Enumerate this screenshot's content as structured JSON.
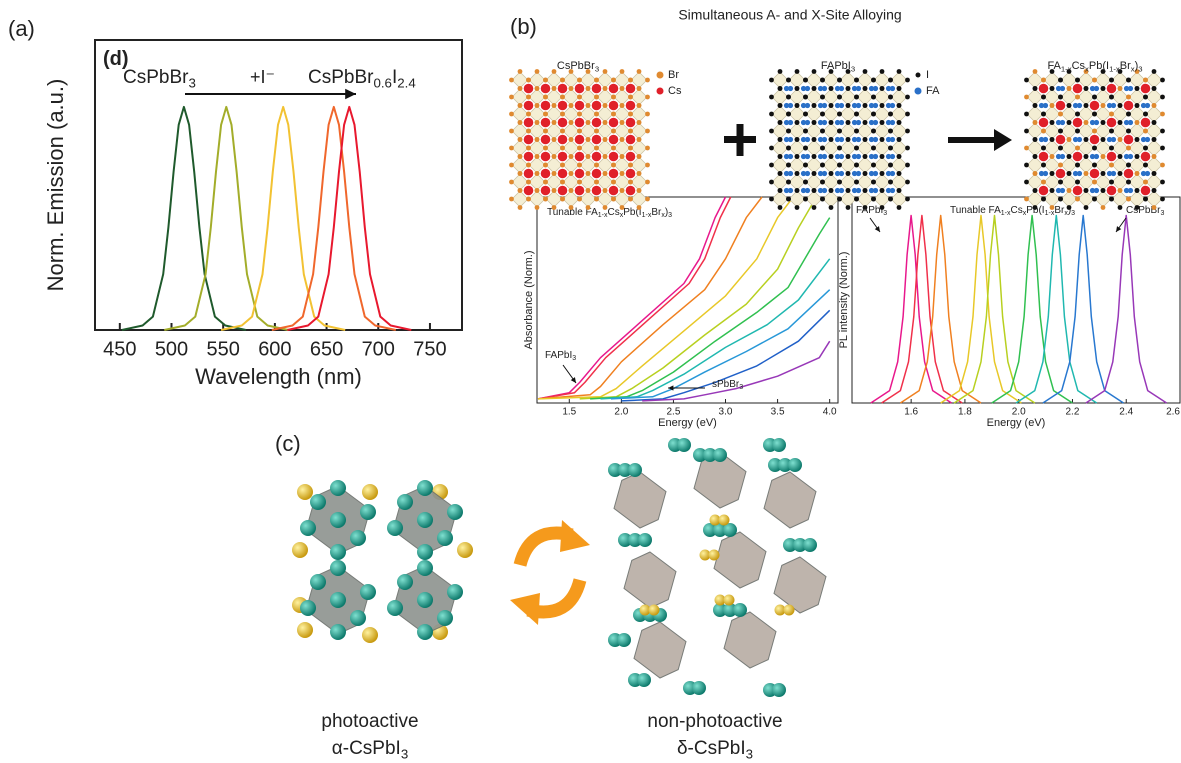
{
  "figure": {
    "panel_labels": [
      "(a)",
      "(b)",
      "(c)"
    ],
    "b_title": "Simultaneous A- and X-Site Alloying",
    "lattices": [
      {
        "label": [
          "CsPbBr",
          "3"
        ],
        "legend": [
          "Br",
          "Cs"
        ]
      },
      {
        "label": [
          "FAPbI",
          "3"
        ],
        "legend": [
          "I",
          "FA"
        ]
      },
      {
        "label": [
          "FA",
          "1-x",
          "Cs",
          "x",
          "Pb(I",
          "1-x",
          "Br",
          "x",
          ")",
          "3"
        ]
      }
    ],
    "c_captions": [
      {
        "line1": "photoactive",
        "line2": [
          "α-CsPbI",
          "3"
        ]
      },
      {
        "line1": "non-photoactive",
        "line2": [
          "δ-CsPbI",
          "3"
        ]
      }
    ]
  },
  "chart_data": [
    {
      "type": "line",
      "x_label": "Wavelength (nm)",
      "y_label": "Norm. Emission (a.u.)",
      "xlim": [
        426,
        781
      ],
      "ylim": [
        0,
        1.3
      ],
      "xticks": [
        450,
        500,
        550,
        600,
        650,
        700,
        750
      ],
      "annotations": [
        [
          "(d)"
        ],
        [
          "CsPbBr",
          "3"
        ],
        [
          "+I⁻"
        ],
        [
          "CsPbBr",
          "0.6",
          "I",
          "2.4"
        ]
      ],
      "series": [
        {
          "color": "#1f5a2c",
          "x": [
            452,
            472,
            482,
            492,
            497,
            502,
            507,
            512,
            517,
            522,
            527,
            532,
            542,
            552,
            572
          ],
          "values": [
            0,
            0.02,
            0.06,
            0.25,
            0.46,
            0.71,
            0.92,
            1,
            0.92,
            0.71,
            0.46,
            0.25,
            0.06,
            0.02,
            0
          ]
        },
        {
          "color": "#a3ad2a",
          "x": [
            493,
            513,
            523,
            533,
            538,
            543,
            548,
            553,
            558,
            563,
            568,
            573,
            583,
            593,
            613
          ],
          "values": [
            0,
            0.02,
            0.06,
            0.25,
            0.46,
            0.71,
            0.92,
            1,
            0.92,
            0.71,
            0.46,
            0.25,
            0.06,
            0.02,
            0
          ]
        },
        {
          "color": "#f2c232",
          "x": [
            548,
            568,
            578,
            588,
            593,
            598,
            603,
            608,
            613,
            618,
            623,
            628,
            638,
            648,
            668
          ],
          "values": [
            0,
            0.02,
            0.06,
            0.25,
            0.46,
            0.71,
            0.92,
            1,
            0.92,
            0.71,
            0.46,
            0.25,
            0.06,
            0.02,
            0
          ]
        },
        {
          "color": "#f0672c",
          "x": [
            597,
            617,
            627,
            637,
            642,
            647,
            652,
            657,
            662,
            667,
            672,
            677,
            687,
            697,
            717
          ],
          "values": [
            0,
            0.02,
            0.06,
            0.25,
            0.46,
            0.71,
            0.92,
            1,
            0.92,
            0.71,
            0.46,
            0.25,
            0.06,
            0.02,
            0
          ]
        },
        {
          "color": "#e8182e",
          "x": [
            612,
            632,
            642,
            652,
            657,
            662,
            667,
            672,
            677,
            682,
            687,
            692,
            702,
            712,
            732
          ],
          "values": [
            0,
            0.02,
            0.06,
            0.25,
            0.46,
            0.71,
            0.92,
            1,
            0.92,
            0.71,
            0.46,
            0.25,
            0.06,
            0.02,
            0
          ]
        }
      ]
    },
    {
      "type": "line",
      "x_label": "Energy (eV)",
      "y_label": "Absorbance (Norm.)",
      "xlim": [
        1.19,
        4.08
      ],
      "ylim": [
        0,
        1
      ],
      "xticks": [
        1.5,
        {
          "value": 2,
          "label": "2.0"
        },
        2.5,
        {
          "value": 3,
          "label": "3.0"
        },
        3.5,
        {
          "value": 4,
          "label": "4.0"
        }
      ],
      "annotations": [
        [
          "Tunable FA",
          "1-x",
          "Cs",
          "x",
          "Pb(I",
          "1-x",
          "Br",
          "x",
          ")",
          "3"
        ],
        [
          "FAPbI",
          "3"
        ],
        [
          "sPbBr",
          "3"
        ]
      ],
      "series": [
        {
          "color": "#e8188c",
          "x": [
            1.2,
            1.5,
            1.6,
            1.8,
            2.2,
            2.6,
            2.75,
            2.9,
            3.0
          ],
          "values": [
            0.02,
            0.05,
            0.1,
            0.22,
            0.4,
            0.58,
            0.7,
            0.9,
            1.0
          ]
        },
        {
          "color": "#f0304a",
          "x": [
            1.2,
            1.55,
            1.65,
            1.85,
            2.25,
            2.65,
            2.8,
            2.95,
            3.05
          ],
          "values": [
            0.02,
            0.05,
            0.1,
            0.22,
            0.4,
            0.58,
            0.7,
            0.9,
            1.0
          ]
        },
        {
          "color": "#f08020",
          "x": [
            1.2,
            1.7,
            1.8,
            2.0,
            2.4,
            2.8,
            3.0,
            3.2,
            3.35
          ],
          "values": [
            0.02,
            0.04,
            0.08,
            0.2,
            0.38,
            0.55,
            0.7,
            0.9,
            1.0
          ]
        },
        {
          "color": "#e8c828",
          "x": [
            1.2,
            1.8,
            1.95,
            2.2,
            2.6,
            3.0,
            3.3,
            3.5,
            3.65
          ],
          "values": [
            0.02,
            0.03,
            0.07,
            0.18,
            0.35,
            0.52,
            0.7,
            0.9,
            1.0
          ]
        },
        {
          "color": "#b8d020",
          "x": [
            1.6,
            1.95,
            2.1,
            2.4,
            2.8,
            3.2,
            3.5,
            3.7,
            3.85
          ],
          "values": [
            0.02,
            0.03,
            0.07,
            0.17,
            0.33,
            0.48,
            0.65,
            0.85,
            0.98
          ]
        },
        {
          "color": "#30c050",
          "x": [
            1.7,
            2.05,
            2.2,
            2.5,
            2.9,
            3.3,
            3.6,
            3.9,
            4.0
          ],
          "values": [
            0.02,
            0.03,
            0.06,
            0.15,
            0.3,
            0.44,
            0.56,
            0.82,
            0.9
          ]
        },
        {
          "color": "#20b8b0",
          "x": [
            1.8,
            2.15,
            2.3,
            2.6,
            3.0,
            3.4,
            3.7,
            4.0
          ],
          "values": [
            0.02,
            0.03,
            0.06,
            0.14,
            0.27,
            0.38,
            0.5,
            0.7
          ]
        },
        {
          "color": "#2898d8",
          "x": [
            1.9,
            2.3,
            2.5,
            2.8,
            3.2,
            3.6,
            4.0
          ],
          "values": [
            0.02,
            0.03,
            0.07,
            0.15,
            0.25,
            0.36,
            0.55
          ]
        },
        {
          "color": "#2060c8",
          "x": [
            2.0,
            2.4,
            2.6,
            2.9,
            3.3,
            3.7,
            4.0
          ],
          "values": [
            0.01,
            0.02,
            0.05,
            0.1,
            0.18,
            0.3,
            0.45
          ]
        },
        {
          "color": "#9838b8",
          "x": [
            2.2,
            2.6,
            2.8,
            3.1,
            3.5,
            3.9,
            4.0
          ],
          "values": [
            0.01,
            0.02,
            0.04,
            0.07,
            0.13,
            0.22,
            0.3
          ]
        }
      ]
    },
    {
      "type": "line",
      "x_label": "Energy (eV)",
      "y_label": "PL intensity (Norm.)",
      "xlim": [
        1.38,
        2.6
      ],
      "ylim": [
        0,
        1
      ],
      "xticks": [
        1.6,
        1.8,
        {
          "value": 2,
          "label": "2.0"
        },
        2.2,
        2.4,
        2.6
      ],
      "annotations": [
        [
          "FAPbI",
          "3"
        ],
        [
          "Tunable FA",
          "1-x",
          "Cs",
          "x",
          "Pb(I",
          "1-x",
          "Br",
          "x",
          ")",
          "3"
        ],
        [
          "CsPbBr",
          "3"
        ]
      ],
      "series": [
        {
          "color": "#e8188c",
          "x": [
            1.45,
            1.52,
            1.55,
            1.57,
            1.585,
            1.6,
            1.615,
            1.63,
            1.65,
            1.68,
            1.75
          ],
          "values": [
            0,
            0.06,
            0.2,
            0.42,
            0.72,
            0.91,
            0.72,
            0.42,
            0.2,
            0.06,
            0
          ]
        },
        {
          "color": "#f0304a",
          "x": [
            1.49,
            1.56,
            1.59,
            1.61,
            1.625,
            1.64,
            1.655,
            1.67,
            1.69,
            1.72,
            1.79
          ],
          "values": [
            0,
            0.06,
            0.2,
            0.42,
            0.72,
            0.91,
            0.72,
            0.42,
            0.2,
            0.06,
            0
          ]
        },
        {
          "color": "#f08020",
          "x": [
            1.56,
            1.63,
            1.66,
            1.68,
            1.695,
            1.71,
            1.725,
            1.74,
            1.76,
            1.79,
            1.86
          ],
          "values": [
            0,
            0.06,
            0.2,
            0.42,
            0.72,
            0.91,
            0.72,
            0.42,
            0.2,
            0.06,
            0
          ]
        },
        {
          "color": "#e8c828",
          "x": [
            1.71,
            1.78,
            1.81,
            1.83,
            1.845,
            1.86,
            1.875,
            1.89,
            1.91,
            1.94,
            2.01
          ],
          "values": [
            0,
            0.06,
            0.2,
            0.42,
            0.72,
            0.91,
            0.72,
            0.42,
            0.2,
            0.06,
            0
          ]
        },
        {
          "color": "#b8d020",
          "x": [
            1.76,
            1.83,
            1.86,
            1.88,
            1.895,
            1.91,
            1.925,
            1.94,
            1.96,
            1.99,
            2.06
          ],
          "values": [
            0,
            0.06,
            0.2,
            0.42,
            0.72,
            0.91,
            0.72,
            0.42,
            0.2,
            0.06,
            0
          ]
        },
        {
          "color": "#30c050",
          "x": [
            1.9,
            1.97,
            2.0,
            2.02,
            2.035,
            2.05,
            2.065,
            2.08,
            2.1,
            2.13,
            2.2
          ],
          "values": [
            0,
            0.06,
            0.2,
            0.42,
            0.72,
            0.91,
            0.72,
            0.42,
            0.2,
            0.06,
            0
          ]
        },
        {
          "color": "#20b8b0",
          "x": [
            1.99,
            2.06,
            2.09,
            2.11,
            2.125,
            2.14,
            2.155,
            2.17,
            2.19,
            2.22,
            2.29
          ],
          "values": [
            0,
            0.06,
            0.2,
            0.42,
            0.72,
            0.91,
            0.72,
            0.42,
            0.2,
            0.06,
            0
          ]
        },
        {
          "color": "#2878d0",
          "x": [
            2.09,
            2.16,
            2.19,
            2.21,
            2.225,
            2.24,
            2.255,
            2.27,
            2.29,
            2.32,
            2.39
          ],
          "values": [
            0,
            0.06,
            0.2,
            0.42,
            0.72,
            0.91,
            0.72,
            0.42,
            0.2,
            0.06,
            0
          ]
        },
        {
          "color": "#9838b8",
          "x": [
            2.25,
            2.32,
            2.35,
            2.37,
            2.385,
            2.4,
            2.415,
            2.43,
            2.45,
            2.48,
            2.55
          ],
          "values": [
            0,
            0.06,
            0.2,
            0.42,
            0.72,
            0.91,
            0.72,
            0.42,
            0.2,
            0.06,
            0
          ]
        }
      ]
    }
  ]
}
